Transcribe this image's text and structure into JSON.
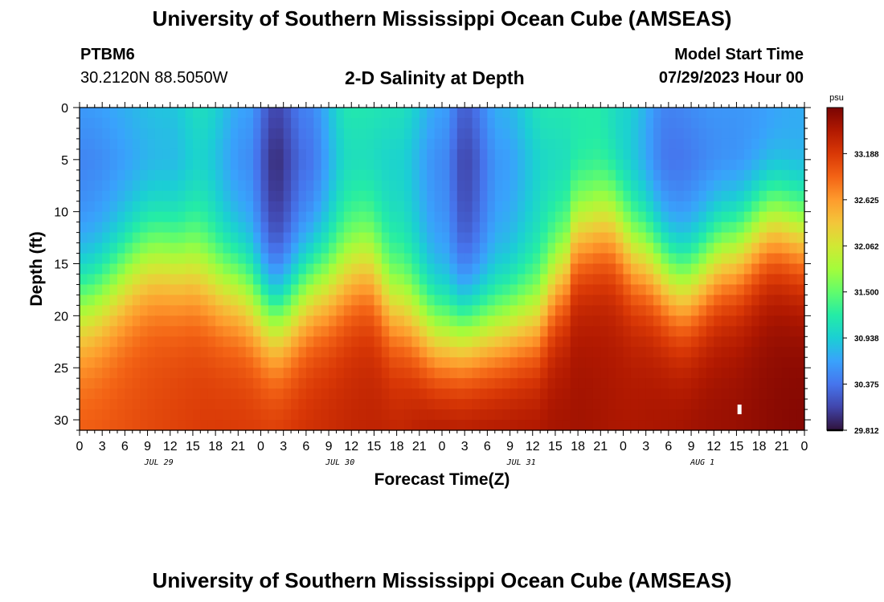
{
  "header": {
    "title_top": "University of Southern Mississippi Ocean Cube (AMSEAS)",
    "title_bottom": "University of Southern Mississippi Ocean Cube (AMSEAS)",
    "station": "PTBM6",
    "location": "30.2120N  88.5050W",
    "model_start_label": "Model Start Time",
    "model_start_value": "07/29/2023 Hour 00"
  },
  "chart_data": {
    "type": "heatmap",
    "title": "2-D Salinity at Depth",
    "xlabel": "Forecast Time(Z)",
    "ylabel": "Depth (ft)",
    "x_tick_labels": [
      "0",
      "3",
      "6",
      "9",
      "12",
      "15",
      "18",
      "21",
      "0",
      "3",
      "6",
      "9",
      "12",
      "15",
      "18",
      "21",
      "0",
      "3",
      "6",
      "9",
      "12",
      "15",
      "18",
      "21",
      "0",
      "3",
      "6",
      "9",
      "12",
      "15",
      "18",
      "21",
      "0"
    ],
    "x_range_hours": [
      0,
      96
    ],
    "date_labels": [
      {
        "label": "JUL 29",
        "hour": 10.5
      },
      {
        "label": "JUL 30",
        "hour": 34.5
      },
      {
        "label": "JUL 31",
        "hour": 58.5
      },
      {
        "label": "AUG 1",
        "hour": 82.5
      }
    ],
    "y_tick_labels": [
      "0",
      "5",
      "10",
      "15",
      "20",
      "25",
      "30"
    ],
    "y_ticks": [
      0,
      5,
      10,
      15,
      20,
      25,
      30
    ],
    "ylim": [
      0,
      31
    ],
    "colorbar": {
      "unit": "psu",
      "range": [
        29.812,
        33.75
      ],
      "tick_values": [
        33.188,
        32.625,
        32.062,
        31.5,
        30.938,
        30.375,
        29.812
      ],
      "tick_labels": [
        "33.188",
        "32.625",
        "32.062",
        "31.500",
        "30.938",
        "30.375",
        "29.812"
      ]
    },
    "surface_salinity_keypoints": [
      [
        0,
        30.45
      ],
      [
        12,
        30.7
      ],
      [
        16,
        30.9
      ],
      [
        22,
        30.5
      ],
      [
        26,
        29.95
      ],
      [
        30,
        30.3
      ],
      [
        36,
        31.0
      ],
      [
        42,
        30.95
      ],
      [
        48,
        30.5
      ],
      [
        51,
        30.1
      ],
      [
        56,
        30.6
      ],
      [
        62,
        31.0
      ],
      [
        68,
        31.0
      ],
      [
        72,
        30.8
      ],
      [
        78,
        30.3
      ],
      [
        84,
        30.4
      ],
      [
        90,
        30.4
      ],
      [
        96,
        30.5
      ]
    ],
    "halocline_depth_keypoints_ft": [
      [
        0,
        19
      ],
      [
        10,
        14.5
      ],
      [
        14,
        15
      ],
      [
        20,
        17
      ],
      [
        26,
        20
      ],
      [
        32,
        17
      ],
      [
        38,
        15
      ],
      [
        42,
        19
      ],
      [
        48,
        22
      ],
      [
        54,
        21.5
      ],
      [
        60,
        20.5
      ],
      [
        64,
        16
      ],
      [
        66,
        12
      ],
      [
        70,
        11
      ],
      [
        74,
        14
      ],
      [
        80,
        17
      ],
      [
        86,
        14
      ],
      [
        92,
        11
      ],
      [
        96,
        12
      ]
    ],
    "bottom_salinity_keypoints": [
      [
        0,
        33.0
      ],
      [
        20,
        33.2
      ],
      [
        42,
        33.4
      ],
      [
        48,
        33.6
      ],
      [
        66,
        33.55
      ],
      [
        72,
        33.5
      ],
      [
        84,
        33.6
      ],
      [
        96,
        33.7
      ]
    ],
    "marker": {
      "hour": 87.4,
      "depth_ft": 29
    }
  },
  "colors": {
    "colormap": [
      "#30123b",
      "#4145ab",
      "#4675ed",
      "#39a2fc",
      "#1bcfd4",
      "#24eca6",
      "#61fc6c",
      "#a4fc3b",
      "#d1e834",
      "#f3c63a",
      "#fe9b2d",
      "#f36315",
      "#d93806",
      "#b11901",
      "#7a0403"
    ]
  }
}
